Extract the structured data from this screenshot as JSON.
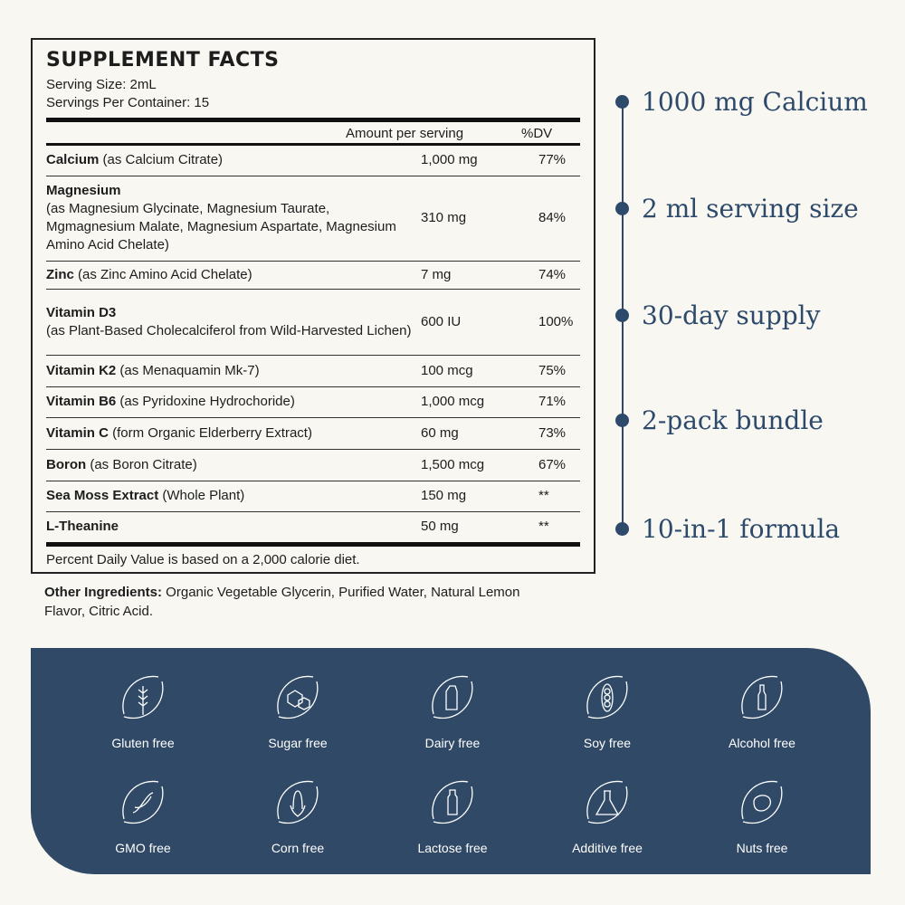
{
  "facts": {
    "title": "SUPPLEMENT FACTS",
    "serving_size": "Serving Size: 2mL",
    "servings_per_container": "Servings Per Container: 15",
    "col_amount": "Amount per serving",
    "col_dv": "%DV",
    "rows": [
      {
        "name": "Calcium",
        "desc": " (as Calcium Citrate)",
        "amount": "1,000 mg",
        "dv": "77%"
      },
      {
        "name": "Magnesium",
        "desc": "(as Magnesium Glycinate, Magnesium Taurate, Mgmagnesium Malate, Magnesium Aspartate, Magnesium Amino Acid Chelate)",
        "amount": "310 mg",
        "dv": "84%"
      },
      {
        "name": "Zinc",
        "desc": " (as Zinc Amino Acid Chelate)",
        "amount": "7 mg",
        "dv": "74%"
      },
      {
        "name": "Vitamin D3",
        "desc": "(as Plant-Based Cholecalciferol from Wild-Harvested Lichen)",
        "amount": "600 IU",
        "dv": "100%"
      },
      {
        "name": "Vitamin K2",
        "desc": " (as Menaquamin Mk-7)",
        "amount": "100 mcg",
        "dv": "75%"
      },
      {
        "name": "Vitamin B6",
        "desc": " (as Pyridoxine Hydrochoride)",
        "amount": "1,000 mcg",
        "dv": "71%"
      },
      {
        "name": "Vitamin C",
        "desc": " (form Organic Elderberry Extract)",
        "amount": "60 mg",
        "dv": "73%"
      },
      {
        "name": "Boron",
        "desc": " (as Boron Citrate)",
        "amount": "1,500 mcg",
        "dv": "67%"
      },
      {
        "name": "Sea Moss Extract",
        "desc": " (Whole Plant)",
        "amount": "150 mg",
        "dv": "**"
      },
      {
        "name": "L-Theanine",
        "desc": "",
        "amount": "50 mg",
        "dv": "**"
      }
    ],
    "footnote": "Percent Daily Value is based on a 2,000 calorie diet."
  },
  "other_ingredients": {
    "label": "Other Ingredients:",
    "text": " Organic Vegetable Glycerin, Purified Water, Natural Lemon Flavor, Citric Acid."
  },
  "highlights": [
    "1000 mg Calcium",
    "2 ml serving size",
    "30-day supply",
    "2-pack bundle",
    "10-in-1 formula"
  ],
  "badges": [
    {
      "label": "Gluten free",
      "icon": "wheat-icon"
    },
    {
      "label": "Sugar free",
      "icon": "sugar-cube-icon"
    },
    {
      "label": "Dairy free",
      "icon": "milk-carton-icon"
    },
    {
      "label": "Soy free",
      "icon": "soybean-icon"
    },
    {
      "label": "Alcohol free",
      "icon": "bottle-icon"
    },
    {
      "label": "GMO free",
      "icon": "dna-icon"
    },
    {
      "label": "Corn free",
      "icon": "corn-icon"
    },
    {
      "label": "Lactose free",
      "icon": "milk-bottle-icon"
    },
    {
      "label": "Additive free",
      "icon": "flask-icon"
    },
    {
      "label": "Nuts free",
      "icon": "nut-icon"
    }
  ],
  "colors": {
    "navy": "#2f4966",
    "background": "#f8f7f2"
  }
}
